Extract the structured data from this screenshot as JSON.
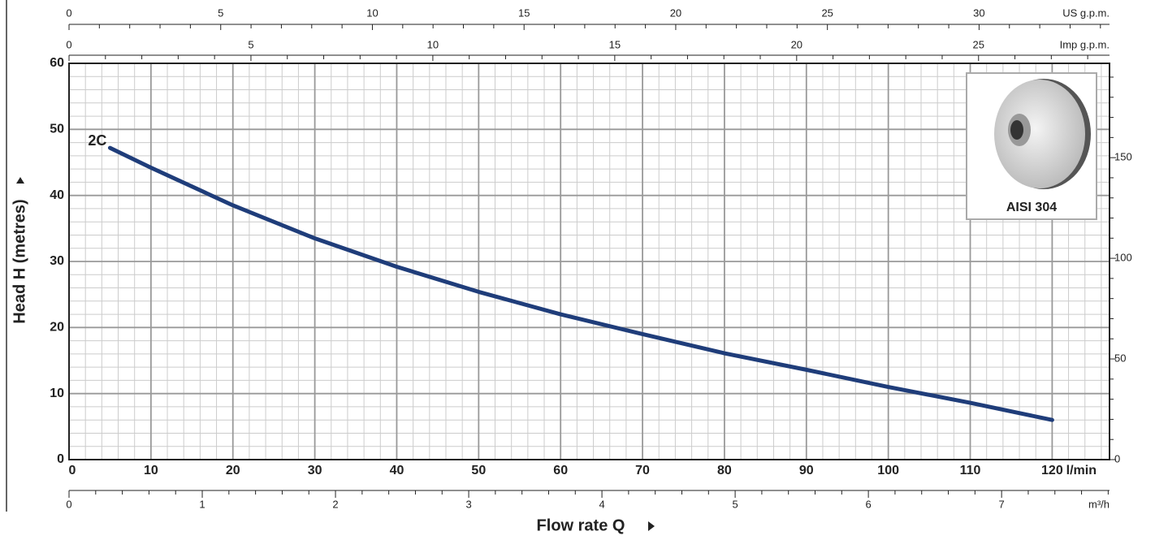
{
  "chart_data": {
    "type": "line",
    "y_label": "Head H (metres)",
    "x_label": "Flow rate Q",
    "x_unit": "l/min",
    "x": [
      5,
      10,
      20,
      30,
      40,
      50,
      60,
      70,
      80,
      90,
      100,
      110,
      120
    ],
    "series": [
      {
        "name": "2C",
        "color": "#1f3d7a",
        "values": [
          47.2,
          44.2,
          38.5,
          33.5,
          29.2,
          25.4,
          22,
          19,
          16.1,
          13.6,
          11,
          8.6,
          6
        ]
      }
    ],
    "xlim": [
      0,
      127
    ],
    "xticks": [
      0,
      10,
      20,
      30,
      40,
      50,
      60,
      70,
      80,
      90,
      100,
      110,
      120
    ],
    "xminor": [
      2,
      4,
      6,
      8,
      12,
      14,
      16,
      18,
      22,
      24,
      26,
      28,
      32,
      34,
      36,
      38,
      42,
      44,
      46,
      48,
      52,
      54,
      56,
      58,
      62,
      64,
      66,
      68,
      72,
      74,
      76,
      78,
      82,
      84,
      86,
      88,
      92,
      94,
      96,
      98,
      102,
      104,
      106,
      108,
      112,
      114,
      116,
      118,
      122,
      124,
      126
    ],
    "ylim": [
      0,
      60
    ],
    "yticks": [
      0,
      10,
      20,
      30,
      40,
      50,
      60
    ],
    "yminor": [
      2,
      4,
      6,
      8,
      12,
      14,
      16,
      18,
      22,
      24,
      26,
      28,
      32,
      34,
      36,
      38,
      42,
      44,
      46,
      48,
      52,
      54,
      56,
      58
    ],
    "grid": true,
    "y2lim": [
      0,
      196.85
    ],
    "y2ticks": [
      0,
      50,
      100,
      150
    ],
    "y2minor": [
      10,
      20,
      30,
      40,
      60,
      70,
      80,
      90,
      110,
      120,
      130,
      140,
      160,
      170,
      180,
      190
    ],
    "top_axes": [
      {
        "unit": "US g.p.m.",
        "lim": [
          0,
          34.3
        ],
        "ticks": [
          0,
          5,
          10,
          15,
          20,
          25,
          30
        ],
        "minor": [
          1,
          2,
          3,
          4,
          6,
          7,
          8,
          9,
          11,
          12,
          13,
          14,
          16,
          17,
          18,
          19,
          21,
          22,
          23,
          24,
          26,
          27,
          28,
          29,
          31,
          32,
          33,
          34
        ]
      },
      {
        "unit": "Imp g.p.m.",
        "lim": [
          0,
          28.6
        ],
        "ticks": [
          0,
          5,
          10,
          15,
          20,
          25
        ],
        "minor": [
          1,
          2,
          3,
          4,
          6,
          7,
          8,
          9,
          11,
          12,
          13,
          14,
          16,
          17,
          18,
          19,
          21,
          22,
          23,
          24,
          26,
          27,
          28
        ]
      }
    ],
    "bottom_axis": {
      "unit": "m³/h",
      "lim": [
        0,
        7.81
      ],
      "ticks": [
        0,
        1,
        2,
        3,
        4,
        5,
        6,
        7
      ],
      "minor": [
        0.2,
        0.4,
        0.6,
        0.8,
        1.2,
        1.4,
        1.6,
        1.8,
        2.2,
        2.4,
        2.6,
        2.8,
        3.2,
        3.4,
        3.6,
        3.8,
        4.2,
        4.4,
        4.6,
        4.8,
        5.2,
        5.4,
        5.6,
        5.8,
        6.2,
        6.4,
        6.6,
        6.8,
        7.2,
        7.4,
        7.6,
        7.8
      ]
    },
    "inset_label": "AISI 304"
  }
}
